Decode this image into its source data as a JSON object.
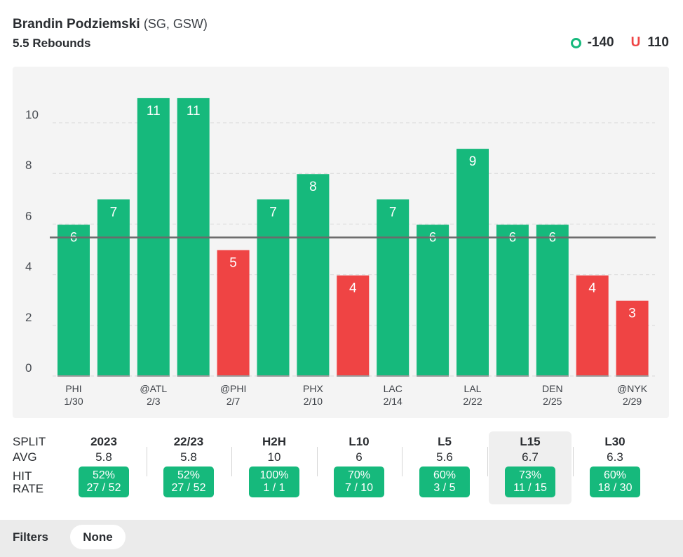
{
  "header": {
    "player_name": "Brandin Podziemski",
    "player_meta": "(SG, GSW)",
    "prop": "5.5 Rebounds",
    "over_label": "O",
    "over_odds": "-140",
    "under_label": "U",
    "under_odds": "110"
  },
  "colors": {
    "over": "#16b97c",
    "under": "#ef4444",
    "line": "#6b6b6b",
    "grid": "#d8d8d8"
  },
  "chart_data": {
    "type": "bar",
    "line": 5.5,
    "ylim": [
      0,
      12
    ],
    "yticks": [
      0,
      2,
      4,
      6,
      8,
      10
    ],
    "values": [
      6,
      7,
      11,
      11,
      5,
      7,
      8,
      4,
      7,
      6,
      9,
      6,
      6,
      4,
      3
    ],
    "categories": [
      "PHI 1/30",
      "",
      "@ATL 2/3",
      "",
      "@PHI 2/7",
      "",
      "PHX 2/10",
      "",
      "LAC 2/14",
      "",
      "LAL 2/22",
      "",
      "DEN 2/25",
      "",
      "@NYK 2/29"
    ],
    "xlabels": [
      {
        "index": 0,
        "team": "PHI",
        "date": "1/30"
      },
      {
        "index": 2,
        "team": "@ATL",
        "date": "2/3"
      },
      {
        "index": 4,
        "team": "@PHI",
        "date": "2/7"
      },
      {
        "index": 6,
        "team": "PHX",
        "date": "2/10"
      },
      {
        "index": 8,
        "team": "LAC",
        "date": "2/14"
      },
      {
        "index": 10,
        "team": "LAL",
        "date": "2/22"
      },
      {
        "index": 12,
        "team": "DEN",
        "date": "2/25"
      },
      {
        "index": 14,
        "team": "@NYK",
        "date": "2/29"
      }
    ]
  },
  "splits": {
    "labels": {
      "split": "SPLIT",
      "avg": "AVG",
      "hit": "HIT",
      "rate": "RATE"
    },
    "columns": [
      {
        "name": "2023",
        "avg": "5.8",
        "pct": "52%",
        "record": "27 / 52"
      },
      {
        "name": "22/23",
        "avg": "5.8",
        "pct": "52%",
        "record": "27 / 52"
      },
      {
        "name": "H2H",
        "avg": "10",
        "pct": "100%",
        "record": "1 / 1"
      },
      {
        "name": "L10",
        "avg": "6",
        "pct": "70%",
        "record": "7 / 10"
      },
      {
        "name": "L5",
        "avg": "5.6",
        "pct": "60%",
        "record": "3 / 5"
      },
      {
        "name": "L15",
        "avg": "6.7",
        "pct": "73%",
        "record": "11 / 15"
      },
      {
        "name": "L30",
        "avg": "6.3",
        "pct": "60%",
        "record": "18 / 30"
      }
    ],
    "active": "L15"
  },
  "filters": {
    "label": "Filters",
    "value": "None"
  }
}
